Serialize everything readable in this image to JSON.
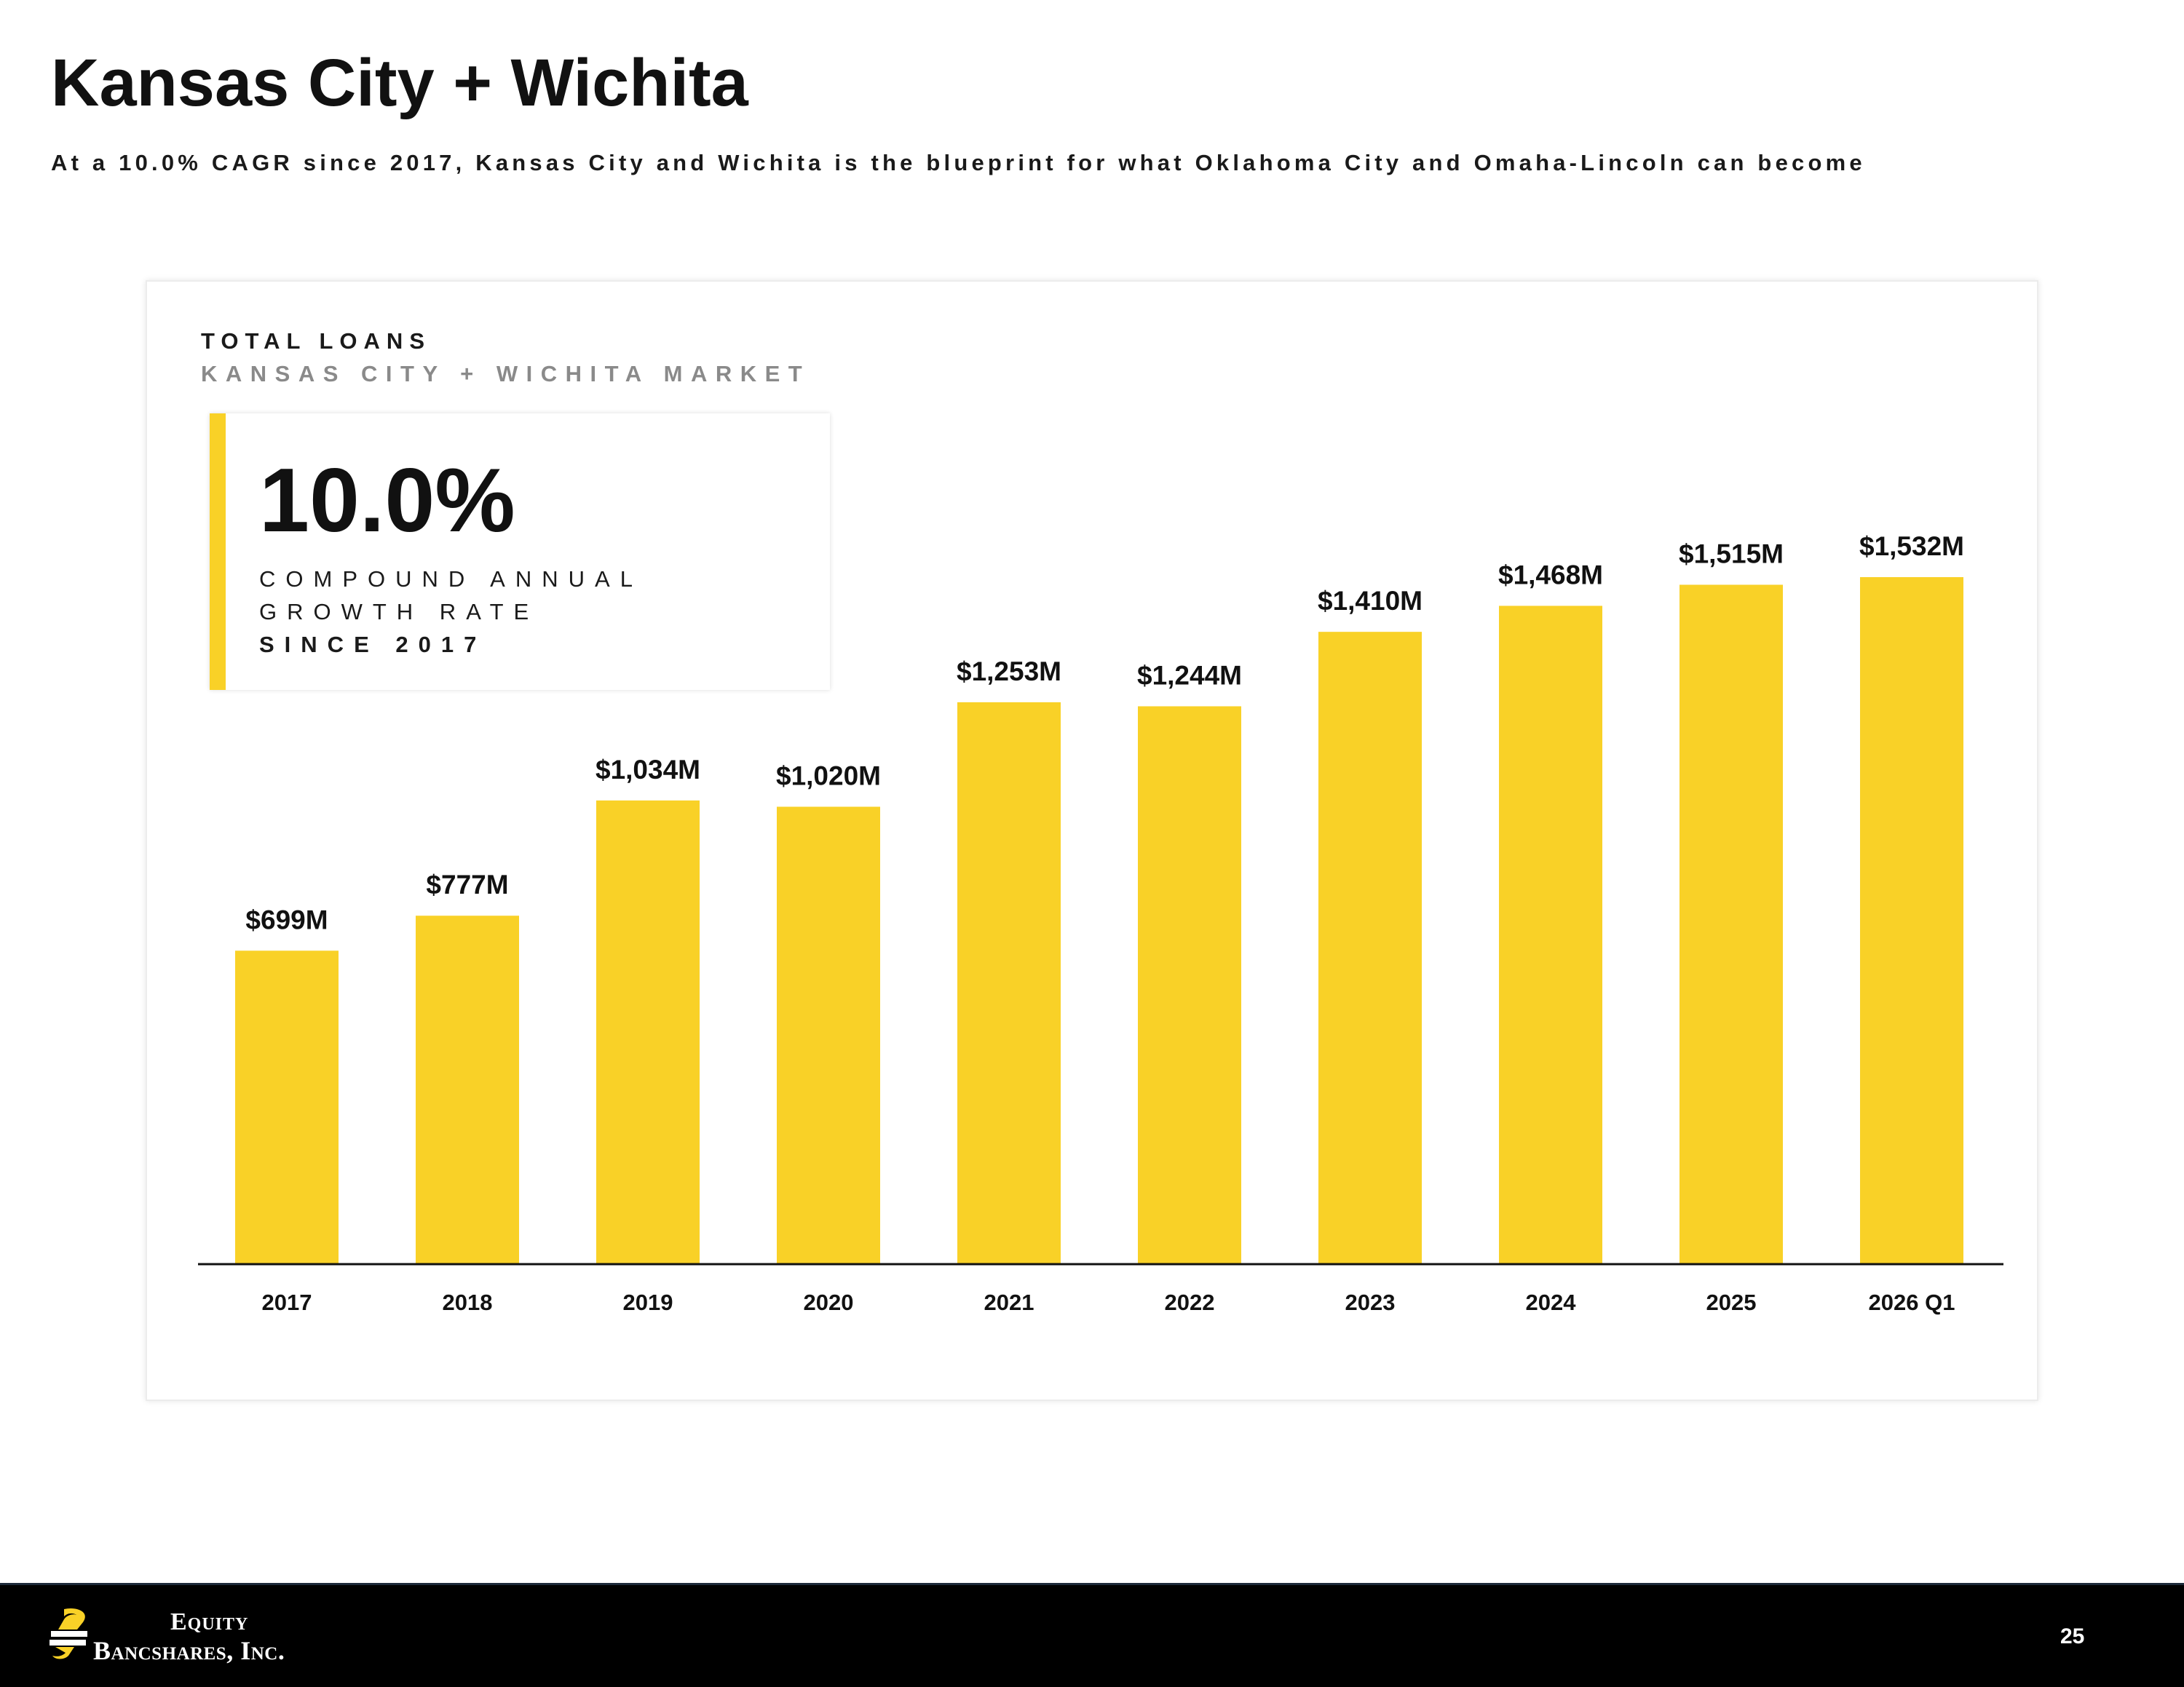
{
  "header": {
    "title": "Kansas City + Wichita",
    "subtitle": "At a 10.0% CAGR since 2017, Kansas City and Wichita is the blueprint for what Oklahoma City and Omaha-Lincoln can become"
  },
  "cagr": {
    "value": "10.0%",
    "line1": "COMPOUND ANNUAL",
    "line2": "GROWTH RATE",
    "line3": "SINCE 2017"
  },
  "footer": {
    "logo_line1": "Equity",
    "logo_line2": "Bancshares, Inc.",
    "page_number": "25"
  },
  "colors": {
    "bar": "#f9d127",
    "accent": "#f9d127",
    "footer": "#000000"
  },
  "chart_data": {
    "type": "bar",
    "title": "TOTAL LOANS",
    "subtitle": "KANSAS CITY + WICHITA MARKET",
    "categories": [
      "2017",
      "2018",
      "2019",
      "2020",
      "2021",
      "2022",
      "2023",
      "2024",
      "2025",
      "2026 Q1"
    ],
    "values": [
      699,
      777,
      1034,
      1020,
      1253,
      1244,
      1410,
      1468,
      1515,
      1532
    ],
    "value_labels": [
      "$699M",
      "$777M",
      "$1,034M",
      "$1,020M",
      "$1,253M",
      "$1,244M",
      "$1,410M",
      "$1,468M",
      "$1,515M",
      "$1,532M"
    ],
    "unit": "$M",
    "ylim": [
      0,
      1532
    ],
    "grid": false,
    "legend": "none"
  }
}
